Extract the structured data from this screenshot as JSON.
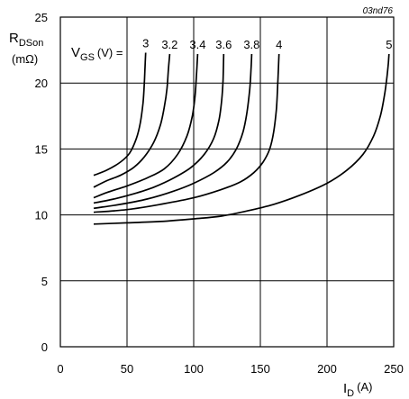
{
  "chart_data": {
    "type": "line",
    "ref_code": "03nd76",
    "xlabel": {
      "main": "I",
      "sub": "D",
      "unit": "(A)"
    },
    "ylabel": {
      "main": "R",
      "sub": "DSon",
      "unit": "(mΩ)"
    },
    "legend_title": {
      "main": "V",
      "sub": "GS",
      "rest": "(V) ="
    },
    "xlim": [
      0,
      250
    ],
    "ylim": [
      0,
      25
    ],
    "xticks": [
      0,
      50,
      100,
      150,
      200,
      250
    ],
    "yticks": [
      0,
      5,
      10,
      15,
      20,
      25
    ],
    "grid": true,
    "series": [
      {
        "name": "3",
        "points": [
          [
            25,
            13.0
          ],
          [
            35,
            13.4
          ],
          [
            45,
            14.0
          ],
          [
            52,
            14.7
          ],
          [
            57,
            15.8
          ],
          [
            60,
            17.0
          ],
          [
            62,
            18.5
          ],
          [
            63,
            20.0
          ],
          [
            63.5,
            21.2
          ],
          [
            64,
            22.3
          ]
        ]
      },
      {
        "name": "3.2",
        "points": [
          [
            25,
            12.1
          ],
          [
            35,
            12.6
          ],
          [
            45,
            13.0
          ],
          [
            55,
            13.6
          ],
          [
            63,
            14.4
          ],
          [
            70,
            15.5
          ],
          [
            75,
            16.8
          ],
          [
            78,
            18.2
          ],
          [
            80,
            19.6
          ],
          [
            81,
            21.0
          ],
          [
            82,
            22.2
          ]
        ]
      },
      {
        "name": "3.4",
        "points": [
          [
            25,
            11.3
          ],
          [
            35,
            11.7
          ],
          [
            50,
            12.2
          ],
          [
            65,
            12.8
          ],
          [
            78,
            13.5
          ],
          [
            88,
            14.6
          ],
          [
            95,
            16.0
          ],
          [
            99,
            17.5
          ],
          [
            101,
            19.0
          ],
          [
            102,
            20.5
          ],
          [
            103,
            22.2
          ]
        ]
      },
      {
        "name": "3.6",
        "points": [
          [
            25,
            10.9
          ],
          [
            40,
            11.2
          ],
          [
            55,
            11.6
          ],
          [
            70,
            12.1
          ],
          [
            85,
            12.8
          ],
          [
            98,
            13.6
          ],
          [
            108,
            14.6
          ],
          [
            115,
            15.8
          ],
          [
            119,
            17.2
          ],
          [
            121,
            18.7
          ],
          [
            122,
            20.2
          ],
          [
            122.5,
            22.2
          ]
        ]
      },
      {
        "name": "3.8",
        "points": [
          [
            25,
            10.5
          ],
          [
            45,
            10.8
          ],
          [
            65,
            11.2
          ],
          [
            85,
            11.8
          ],
          [
            100,
            12.4
          ],
          [
            115,
            13.2
          ],
          [
            125,
            14.0
          ],
          [
            132,
            15.0
          ],
          [
            137,
            16.3
          ],
          [
            140,
            17.8
          ],
          [
            142,
            19.5
          ],
          [
            143,
            21.0
          ],
          [
            143.5,
            22.2
          ]
        ]
      },
      {
        "name": "4",
        "points": [
          [
            25,
            10.2
          ],
          [
            50,
            10.4
          ],
          [
            75,
            10.8
          ],
          [
            100,
            11.3
          ],
          [
            120,
            11.9
          ],
          [
            135,
            12.5
          ],
          [
            145,
            13.2
          ],
          [
            152,
            14.0
          ],
          [
            157,
            15.0
          ],
          [
            160,
            16.3
          ],
          [
            162,
            18.0
          ],
          [
            163,
            19.8
          ],
          [
            163.5,
            21.0
          ],
          [
            164,
            22.2
          ]
        ]
      },
      {
        "name": "5",
        "points": [
          [
            25,
            9.3
          ],
          [
            50,
            9.4
          ],
          [
            75,
            9.5
          ],
          [
            100,
            9.7
          ],
          [
            120,
            9.9
          ],
          [
            140,
            10.3
          ],
          [
            160,
            10.8
          ],
          [
            180,
            11.5
          ],
          [
            200,
            12.4
          ],
          [
            215,
            13.4
          ],
          [
            227,
            14.6
          ],
          [
            235,
            16.0
          ],
          [
            240,
            17.5
          ],
          [
            243,
            19.0
          ],
          [
            245,
            20.5
          ],
          [
            246,
            21.5
          ],
          [
            246.5,
            22.2
          ]
        ]
      }
    ]
  }
}
